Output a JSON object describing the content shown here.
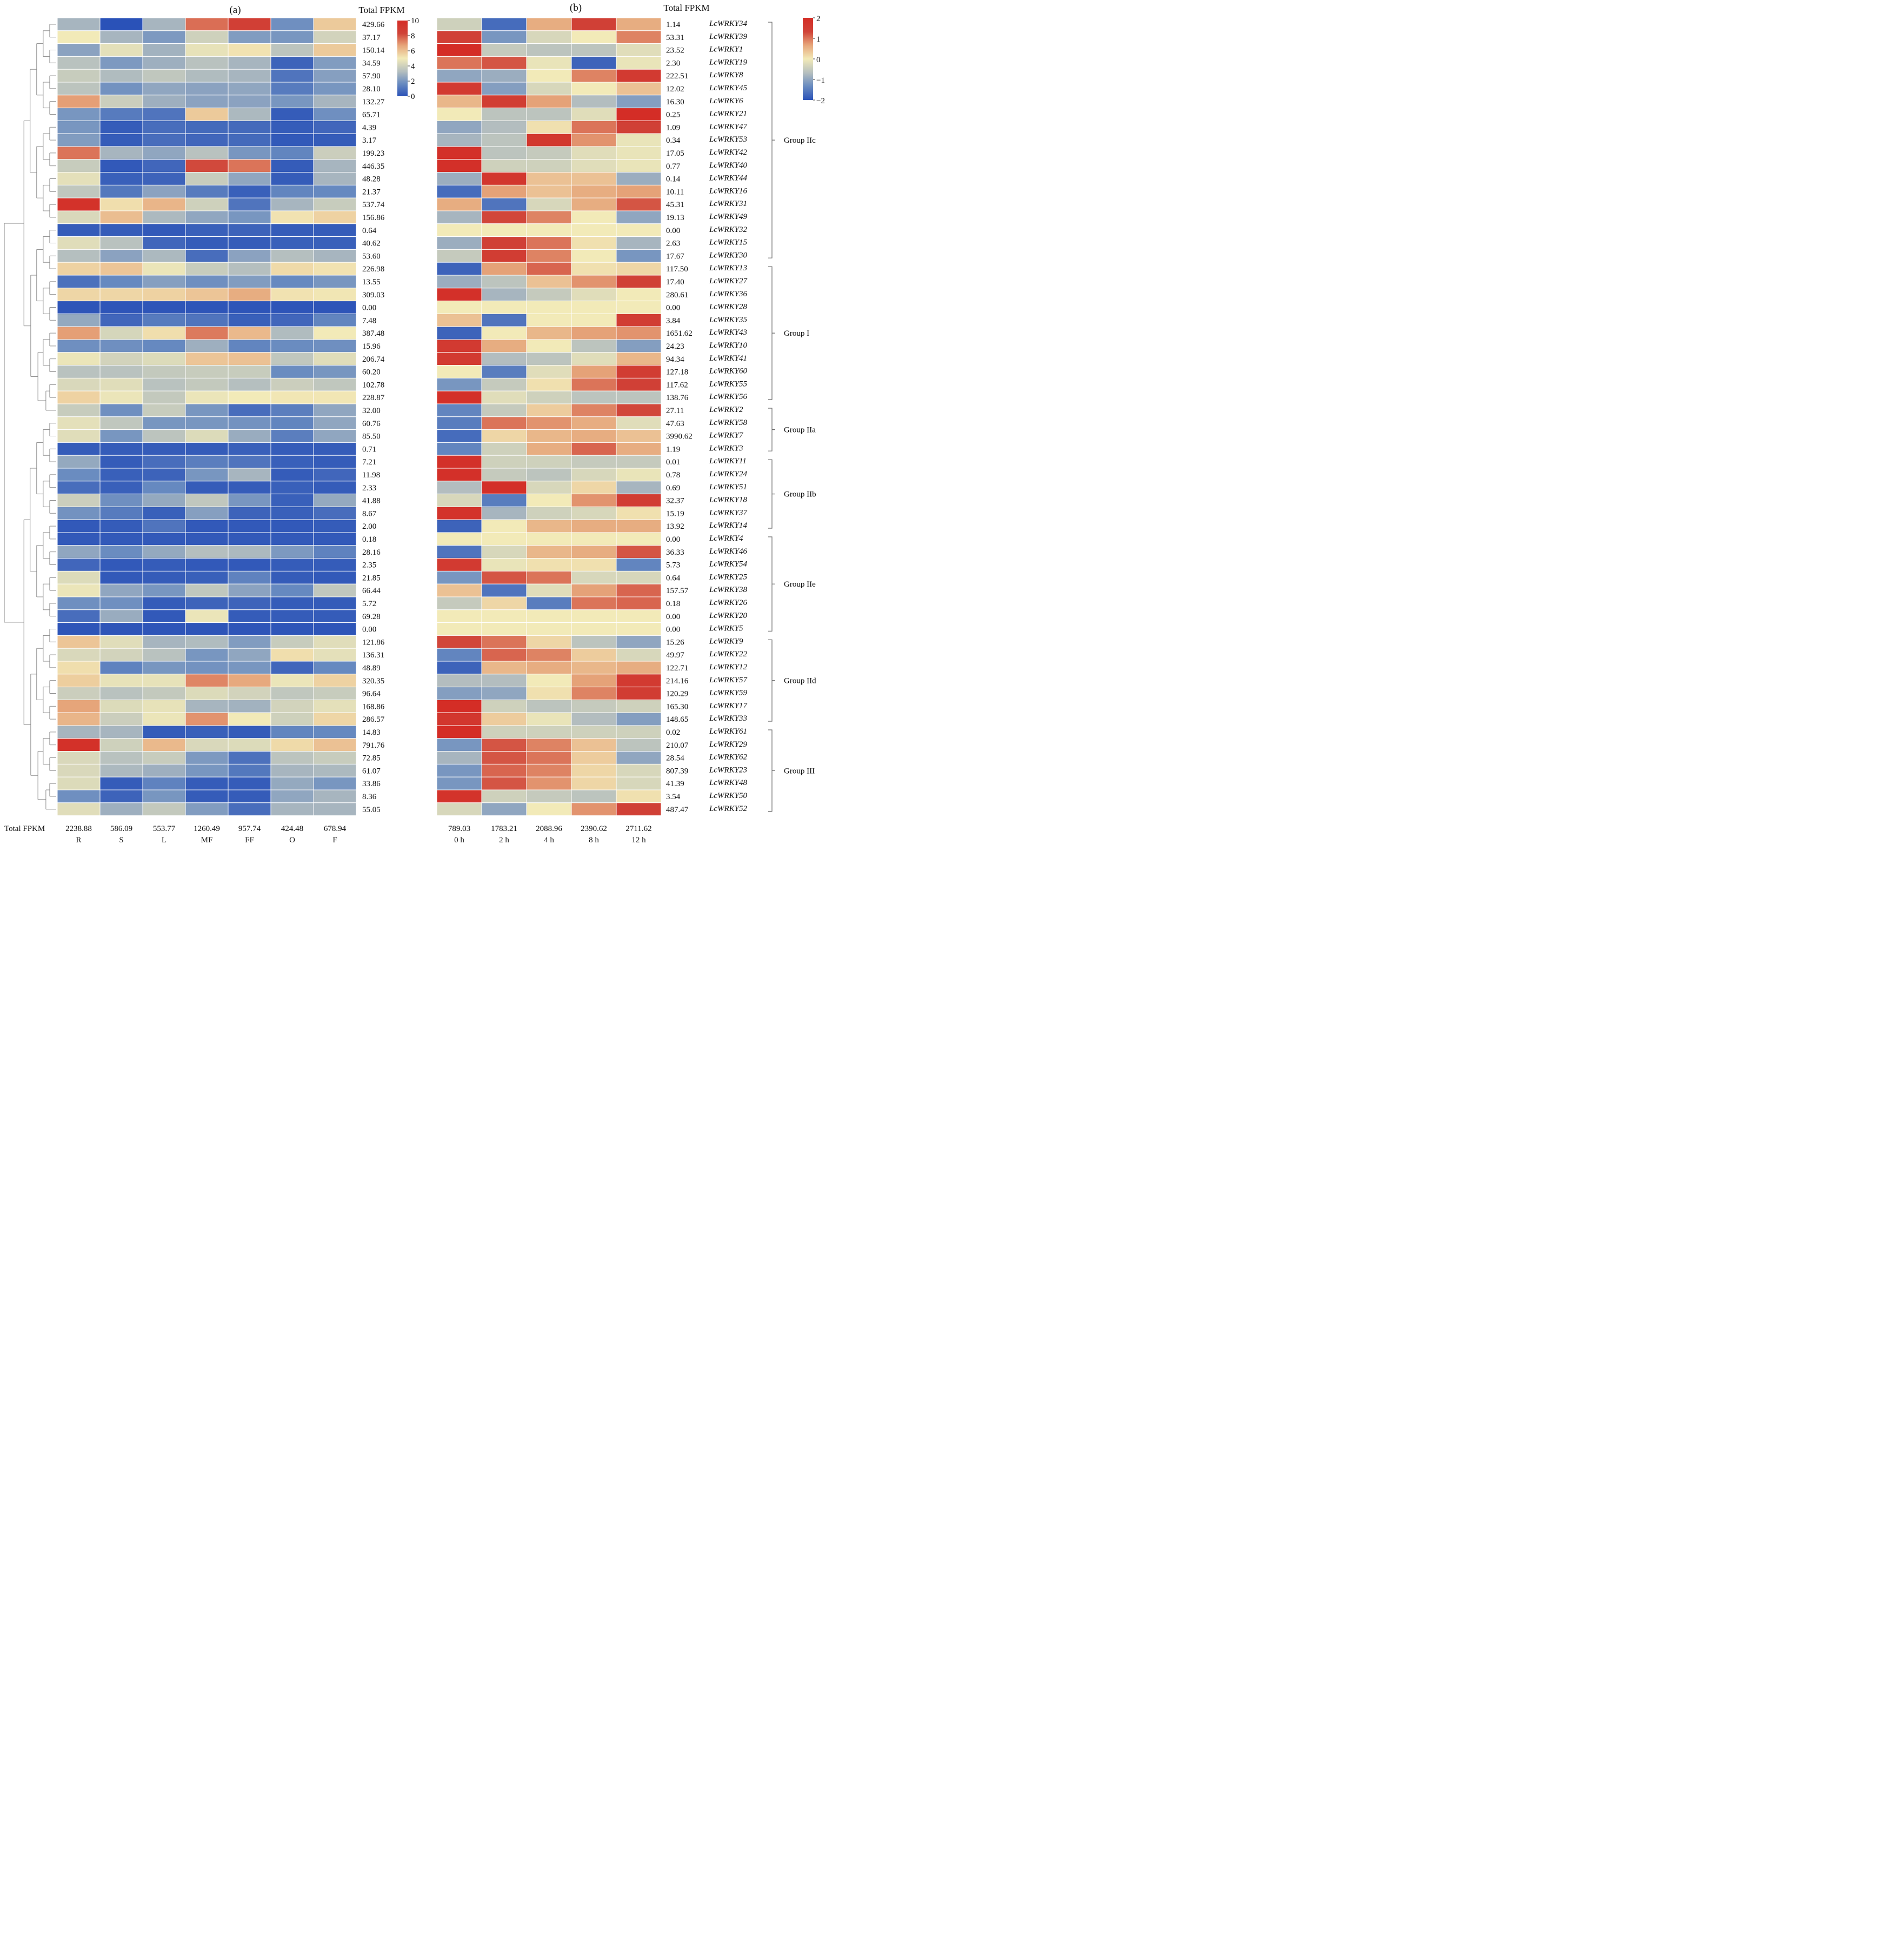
{
  "colors": {
    "palette_stops": [
      "#2a52b8",
      "#6a8cc0",
      "#b5bfbf",
      "#f2eab8",
      "#e6a57a",
      "#d04338",
      "#d42d26"
    ],
    "grid_line": "#ffffff",
    "dendrogram": "#8a8a8a",
    "bracket": "#6a6a6a"
  },
  "chart_data": [
    {
      "type": "heatmap",
      "title": "(a)",
      "value_header": "Total FPKM",
      "column_total_label": "Total FPKM",
      "columns": [
        "R",
        "S",
        "L",
        "MF",
        "FF",
        "O",
        "F"
      ],
      "column_totals": [
        "2238.88",
        "586.09",
        "553.77",
        "1260.49",
        "957.74",
        "424.48",
        "678.94"
      ],
      "row_totals": [
        "429.66",
        "37.17",
        "150.14",
        "34.59",
        "57.90",
        "28.10",
        "132.27",
        "65.71",
        "4.39",
        "3.17",
        "199.23",
        "446.35",
        "48.28",
        "21.37",
        "537.74",
        "156.86",
        "0.64",
        "40.62",
        "53.60",
        "226.98",
        "13.55",
        "309.03",
        "0.00",
        "7.48",
        "387.48",
        "15.96",
        "206.74",
        "60.20",
        "102.78",
        "228.87",
        "32.00",
        "60.76",
        "85.50",
        "0.71",
        "7.21",
        "11.98",
        "2.33",
        "41.88",
        "8.67",
        "2.00",
        "0.18",
        "28.16",
        "2.35",
        "21.85",
        "66.44",
        "5.72",
        "69.28",
        "0.00",
        "121.86",
        "136.31",
        "48.89",
        "320.35",
        "96.64",
        "168.86",
        "286.57",
        "14.83",
        "791.76",
        "72.85",
        "61.07",
        "33.86",
        "8.36",
        "55.05"
      ],
      "scale": {
        "min": 0,
        "max": 10,
        "ticks": [
          "10",
          "8",
          "6",
          "4",
          "2",
          "0"
        ]
      },
      "values": [
        [
          3.0,
          0.0,
          3.0,
          7.6,
          8.6,
          1.8,
          5.8
        ],
        [
          5.0,
          3.0,
          2.1,
          4.0,
          2.2,
          2.0,
          4.1
        ],
        [
          2.4,
          4.6,
          2.9,
          4.7,
          5.2,
          3.5,
          5.8
        ],
        [
          3.4,
          2.1,
          2.8,
          3.4,
          3.0,
          0.5,
          2.2
        ],
        [
          3.8,
          3.2,
          3.6,
          3.2,
          3.0,
          1.0,
          2.3
        ],
        [
          3.5,
          1.9,
          2.5,
          2.4,
          2.5,
          1.2,
          2.0
        ],
        [
          6.8,
          3.9,
          2.8,
          2.4,
          2.4,
          2.0,
          3.0
        ],
        [
          2.0,
          1.2,
          1.0,
          5.8,
          3.1,
          0.3,
          1.8
        ],
        [
          2.0,
          0.3,
          0.8,
          0.7,
          0.7,
          0.3,
          0.6
        ],
        [
          2.2,
          0.3,
          0.8,
          0.6,
          0.7,
          0.2,
          0.3
        ],
        [
          7.5,
          3.0,
          2.5,
          3.4,
          2.0,
          1.5,
          3.9
        ],
        [
          3.8,
          0.2,
          0.6,
          8.2,
          7.5,
          0.3,
          3.0
        ],
        [
          4.6,
          0.4,
          0.5,
          3.8,
          2.5,
          0.3,
          3.0
        ],
        [
          3.6,
          1.1,
          2.4,
          1.2,
          0.4,
          1.5,
          1.6
        ],
        [
          9.6,
          5.3,
          6.3,
          4.0,
          1.0,
          3.0,
          3.8
        ],
        [
          4.3,
          6.1,
          3.1,
          2.5,
          2.0,
          5.2,
          5.6
        ],
        [
          0.3,
          0.3,
          0.2,
          0.4,
          0.5,
          0.3,
          0.3
        ],
        [
          4.5,
          3.4,
          0.6,
          0.3,
          0.3,
          0.4,
          0.4
        ],
        [
          3.3,
          2.4,
          3.1,
          0.8,
          2.4,
          3.3,
          3.0
        ],
        [
          5.6,
          5.9,
          4.8,
          3.8,
          3.3,
          5.4,
          5.2
        ],
        [
          0.9,
          1.6,
          2.3,
          1.8,
          2.2,
          1.6,
          2.0
        ],
        [
          5.5,
          5.5,
          5.6,
          5.9,
          6.5,
          5.2,
          5.1
        ],
        [
          0.1,
          0.1,
          0.1,
          0.1,
          0.1,
          0.1,
          0.1
        ],
        [
          2.6,
          0.6,
          1.2,
          1.0,
          0.4,
          0.6,
          1.5
        ],
        [
          6.8,
          4.2,
          5.3,
          7.4,
          6.2,
          3.2,
          5.0
        ],
        [
          1.8,
          1.8,
          1.6,
          2.8,
          1.5,
          1.7,
          1.8
        ],
        [
          4.8,
          4.1,
          4.4,
          5.9,
          6.0,
          3.6,
          4.5
        ],
        [
          3.4,
          3.4,
          3.7,
          3.8,
          3.8,
          1.7,
          2.0
        ],
        [
          4.3,
          4.5,
          3.4,
          3.7,
          3.3,
          3.9,
          3.6
        ],
        [
          5.6,
          4.8,
          3.7,
          4.8,
          5.0,
          5.1,
          5.1
        ],
        [
          3.8,
          1.8,
          3.8,
          2.0,
          0.8,
          1.3,
          2.5
        ],
        [
          4.6,
          3.6,
          2.0,
          2.0,
          1.9,
          1.5,
          2.5
        ],
        [
          4.5,
          2.0,
          3.5,
          4.4,
          2.7,
          1.3,
          2.5
        ],
        [
          0.3,
          0.3,
          0.3,
          0.3,
          0.4,
          0.3,
          0.3
        ],
        [
          2.6,
          0.3,
          0.8,
          1.3,
          1.0,
          0.4,
          0.3
        ],
        [
          1.7,
          0.4,
          0.5,
          2.0,
          3.0,
          0.3,
          0.6
        ],
        [
          0.8,
          0.4,
          1.6,
          0.3,
          0.3,
          0.4,
          0.3
        ],
        [
          3.9,
          1.8,
          2.6,
          3.6,
          2.0,
          0.4,
          2.6
        ],
        [
          1.9,
          1.2,
          0.4,
          2.3,
          0.5,
          0.4,
          0.8
        ],
        [
          0.2,
          0.3,
          1.0,
          0.2,
          0.2,
          0.2,
          0.3
        ],
        [
          0.2,
          0.2,
          0.2,
          0.2,
          0.2,
          0.2,
          0.2
        ],
        [
          2.5,
          1.7,
          2.6,
          3.3,
          3.1,
          2.1,
          1.4
        ],
        [
          0.6,
          0.2,
          0.3,
          0.2,
          0.2,
          0.3,
          0.3
        ],
        [
          4.4,
          0.2,
          0.3,
          0.4,
          1.4,
          0.3,
          0.2
        ],
        [
          4.8,
          2.5,
          2.0,
          3.6,
          2.4,
          1.6,
          3.6
        ],
        [
          1.8,
          1.8,
          0.3,
          0.5,
          0.5,
          0.3,
          0.3
        ],
        [
          0.8,
          2.7,
          0.2,
          4.8,
          0.3,
          0.3,
          0.3
        ],
        [
          0.1,
          0.1,
          0.1,
          0.1,
          0.1,
          0.1,
          0.1
        ],
        [
          5.9,
          4.5,
          3.0,
          3.2,
          2.2,
          3.8,
          4.5
        ],
        [
          4.3,
          4.1,
          3.4,
          2.0,
          2.5,
          5.3,
          4.6
        ],
        [
          5.3,
          1.4,
          2.0,
          1.9,
          2.0,
          0.6,
          1.6
        ],
        [
          5.7,
          4.7,
          4.7,
          7.2,
          6.6,
          4.8,
          5.6
        ],
        [
          3.9,
          3.4,
          3.7,
          4.4,
          4.1,
          3.6,
          3.8
        ],
        [
          6.7,
          4.4,
          4.7,
          3.0,
          2.9,
          4.1,
          4.6
        ],
        [
          6.3,
          3.9,
          4.8,
          7.0,
          5.0,
          4.0,
          5.5
        ],
        [
          3.0,
          3.0,
          0.3,
          0.4,
          0.3,
          1.5,
          1.6
        ],
        [
          9.7,
          4.0,
          6.2,
          4.3,
          4.4,
          5.4,
          6.0
        ],
        [
          4.3,
          3.4,
          3.8,
          2.1,
          0.9,
          3.5,
          3.8
        ],
        [
          4.3,
          3.1,
          2.8,
          2.0,
          1.1,
          3.0,
          3.1
        ],
        [
          4.4,
          0.3,
          1.4,
          0.3,
          0.3,
          2.6,
          2.0
        ],
        [
          1.8,
          0.5,
          2.0,
          0.3,
          0.3,
          2.5,
          3.0
        ],
        [
          4.5,
          2.8,
          3.7,
          2.2,
          0.8,
          3.0,
          3.0
        ]
      ]
    },
    {
      "type": "heatmap",
      "title": "(b)",
      "value_header": "Total FPKM",
      "columns": [
        "0 h",
        "2 h",
        "4 h",
        "8 h",
        "12 h"
      ],
      "column_totals": [
        "789.03",
        "1783.21",
        "2088.96",
        "2390.62",
        "2711.62"
      ],
      "row_totals": [
        "1.14",
        "53.31",
        "23.52",
        "2.30",
        "222.51",
        "12.02",
        "16.30",
        "0.25",
        "1.09",
        "0.34",
        "17.05",
        "0.77",
        "0.14",
        "10.11",
        "45.31",
        "19.13",
        "0.00",
        "2.63",
        "17.67",
        "117.50",
        "17.40",
        "280.61",
        "0.00",
        "3.84",
        "1651.62",
        "24.23",
        "94.34",
        "127.18",
        "117.62",
        "138.76",
        "27.11",
        "47.63",
        "3990.62",
        "1.19",
        "0.01",
        "0.78",
        "0.69",
        "32.37",
        "15.19",
        "13.92",
        "0.00",
        "36.33",
        "5.73",
        "0.64",
        "157.57",
        "0.18",
        "0.00",
        "0.00",
        "15.26",
        "49.97",
        "122.71",
        "214.16",
        "120.29",
        "165.30",
        "148.65",
        "0.02",
        "210.07",
        "28.54",
        "807.39",
        "41.39",
        "3.54",
        "487.47"
      ],
      "genes": [
        "LcWRKY34",
        "LcWRKY39",
        "LcWRKY1",
        "LcWRKY19",
        "LcWRKY8",
        "LcWRKY45",
        "LcWRKY6",
        "LcWRKY21",
        "LcWRKY47",
        "LcWRKY53",
        "LcWRKY42",
        "LcWRKY40",
        "LcWRKY44",
        "LcWRKY16",
        "LcWRKY31",
        "LcWRKY49",
        "LcWRKY32",
        "LcWRKY15",
        "LcWRKY30",
        "LcWRKY13",
        "LcWRKY27",
        "LcWRKY36",
        "LcWRKY28",
        "LcWRKY35",
        "LcWRKY43",
        "LcWRKY10",
        "LcWRKY41",
        "LcWRKY60",
        "LcWRKY55",
        "LcWRKY56",
        "LcWRKY2",
        "LcWRKY58",
        "LcWRKY7",
        "LcWRKY3",
        "LcWRKY11",
        "LcWRKY24",
        "LcWRKY51",
        "LcWRKY18",
        "LcWRKY37",
        "LcWRKY14",
        "LcWRKY4",
        "LcWRKY46",
        "LcWRKY54",
        "LcWRKY25",
        "LcWRKY38",
        "LcWRKY26",
        "LcWRKY20",
        "LcWRKY5",
        "LcWRKY9",
        "LcWRKY22",
        "LcWRKY12",
        "LcWRKY57",
        "LcWRKY59",
        "LcWRKY17",
        "LcWRKY33",
        "LcWRKY61",
        "LcWRKY29",
        "LcWRKY62",
        "LcWRKY23",
        "LcWRKY48",
        "LcWRKY50",
        "LcWRKY52"
      ],
      "groups": [
        {
          "label": "Group IIc",
          "start": 0,
          "end": 18
        },
        {
          "label": "Group I",
          "start": 19,
          "end": 29
        },
        {
          "label": "Group IIa",
          "start": 30,
          "end": 33
        },
        {
          "label": "Group IIb",
          "start": 34,
          "end": 39
        },
        {
          "label": "Group IIe",
          "start": 40,
          "end": 47
        },
        {
          "label": "Group IId",
          "start": 48,
          "end": 54
        },
        {
          "label": "Group III",
          "start": 55,
          "end": 61
        }
      ],
      "scale": {
        "min": -2,
        "max": 2,
        "ticks": [
          "2",
          "1",
          "0",
          "−1",
          "−2"
        ]
      },
      "values": [
        [
          -0.4,
          -1.7,
          0.6,
          1.4,
          0.6
        ],
        [
          1.4,
          -1.2,
          -0.3,
          0.0,
          0.9
        ],
        [
          2.0,
          -0.5,
          -0.6,
          -0.6,
          -0.2
        ],
        [
          1.0,
          1.2,
          -0.1,
          -1.8,
          -0.1
        ],
        [
          -1.0,
          -0.9,
          0.0,
          0.9,
          1.6
        ],
        [
          1.6,
          -1.1,
          -0.3,
          0.0,
          0.4
        ],
        [
          0.5,
          1.5,
          0.7,
          -0.7,
          -1.1
        ],
        [
          0.0,
          -0.6,
          -0.6,
          -0.2,
          2.0
        ],
        [
          -1.0,
          -0.7,
          0.1,
          1.0,
          1.4
        ],
        [
          -0.8,
          -0.6,
          1.7,
          0.8,
          -0.1
        ],
        [
          1.9,
          -0.6,
          -0.5,
          -0.2,
          -0.1
        ],
        [
          1.9,
          -0.4,
          -0.4,
          -0.2,
          -0.1
        ],
        [
          -0.9,
          1.7,
          0.4,
          0.4,
          -0.9
        ],
        [
          -1.7,
          0.7,
          0.4,
          0.6,
          0.7
        ],
        [
          0.6,
          -1.6,
          -0.3,
          0.6,
          1.2
        ],
        [
          -0.8,
          1.3,
          0.9,
          0.0,
          -1.0
        ],
        [
          0.0,
          0.0,
          0.0,
          0.0,
          0.0
        ],
        [
          -0.9,
          1.4,
          1.0,
          0.1,
          -0.8
        ],
        [
          -0.5,
          1.5,
          0.9,
          0.0,
          -1.2
        ],
        [
          -1.8,
          0.7,
          1.1,
          0.1,
          0.2
        ],
        [
          -0.9,
          -0.6,
          0.4,
          0.8,
          1.4
        ],
        [
          1.9,
          -0.8,
          -0.5,
          -0.2,
          0.0
        ],
        [
          0.0,
          0.0,
          0.0,
          0.0,
          0.0
        ],
        [
          0.4,
          -1.6,
          0.0,
          0.0,
          1.5
        ],
        [
          -1.8,
          0.0,
          0.5,
          0.7,
          0.8
        ],
        [
          1.6,
          0.6,
          0.0,
          -0.6,
          -1.1
        ],
        [
          1.6,
          -0.7,
          -0.6,
          -0.2,
          0.5
        ],
        [
          0.0,
          -1.5,
          -0.2,
          0.7,
          1.5
        ],
        [
          -1.2,
          -0.5,
          0.1,
          1.0,
          1.4
        ],
        [
          1.9,
          -0.2,
          -0.4,
          -0.6,
          -0.6
        ],
        [
          -1.4,
          -0.5,
          0.3,
          0.9,
          1.3
        ],
        [
          -1.5,
          1.0,
          0.8,
          0.6,
          -0.2
        ],
        [
          -1.7,
          0.2,
          0.5,
          0.6,
          0.4
        ],
        [
          -1.4,
          -0.4,
          0.6,
          1.1,
          0.6
        ],
        [
          1.9,
          -0.4,
          -0.4,
          -0.5,
          -0.5
        ],
        [
          1.9,
          -0.5,
          -0.6,
          -0.3,
          -0.1
        ],
        [
          -0.7,
          1.9,
          -0.3,
          0.2,
          -0.8
        ],
        [
          -0.3,
          -1.5,
          0.0,
          0.8,
          1.5
        ],
        [
          1.8,
          -0.8,
          -0.4,
          -0.3,
          0.1
        ],
        [
          -1.8,
          0.0,
          0.5,
          0.6,
          0.6
        ],
        [
          0.0,
          0.0,
          0.0,
          0.0,
          0.0
        ],
        [
          -1.6,
          -0.3,
          0.5,
          0.6,
          1.2
        ],
        [
          1.6,
          -0.1,
          0.1,
          0.1,
          -1.4
        ],
        [
          -1.2,
          1.2,
          1.0,
          -0.3,
          -0.3
        ],
        [
          0.4,
          -1.6,
          -0.2,
          0.7,
          1.1
        ],
        [
          -0.5,
          0.2,
          -1.5,
          1.0,
          1.1
        ],
        [
          0.0,
          0.0,
          0.0,
          0.0,
          0.0
        ],
        [
          0.0,
          0.0,
          0.0,
          0.0,
          0.0
        ],
        [
          1.3,
          1.0,
          0.2,
          -0.6,
          -1.0
        ],
        [
          -1.4,
          1.1,
          0.9,
          0.3,
          -0.3
        ],
        [
          -1.8,
          0.5,
          0.6,
          0.5,
          0.6
        ],
        [
          -0.7,
          -0.7,
          0.0,
          0.7,
          1.6
        ],
        [
          -1.1,
          -1.0,
          0.1,
          0.9,
          1.5
        ],
        [
          2.0,
          -0.4,
          -0.6,
          -0.5,
          -0.4
        ],
        [
          1.7,
          0.3,
          -0.1,
          -0.7,
          -1.1
        ],
        [
          2.0,
          -0.4,
          -0.4,
          -0.4,
          -0.4
        ],
        [
          -1.2,
          1.2,
          0.9,
          0.4,
          -0.6
        ],
        [
          -0.8,
          1.2,
          1.0,
          0.3,
          -1.0
        ],
        [
          -1.2,
          1.1,
          0.9,
          0.2,
          -0.3
        ],
        [
          -1.2,
          1.2,
          0.8,
          0.2,
          -0.3
        ],
        [
          1.8,
          -0.4,
          -0.5,
          -0.6,
          0.1
        ],
        [
          -0.3,
          -1.0,
          0.0,
          0.8,
          1.4
        ]
      ]
    }
  ]
}
